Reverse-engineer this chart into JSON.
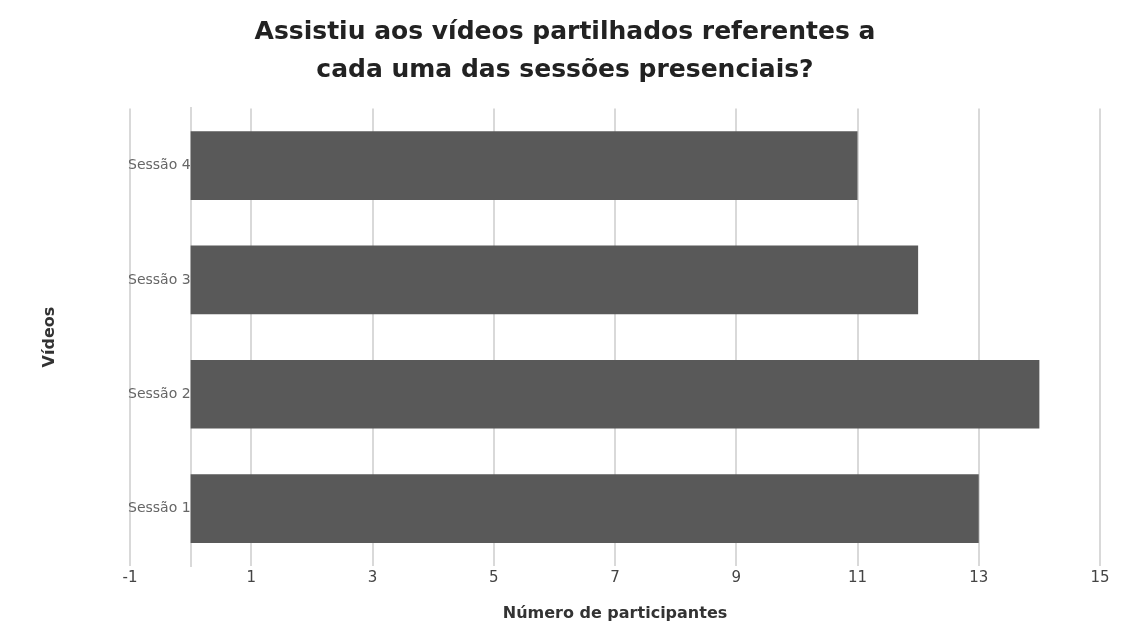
{
  "chart_data": {
    "type": "bar",
    "orientation": "horizontal",
    "title": "Assistiu aos vídeos partilhados referentes a cada uma das sessões presenciais?",
    "xlabel": "Número de participantes",
    "ylabel": "Vídeos",
    "categories": [
      "Sessão 4",
      "Sessão 3",
      "Sessão 2",
      "Sessão 1"
    ],
    "values": [
      11,
      12,
      14,
      13
    ],
    "color": "#595959",
    "xlim": [
      -1,
      15
    ],
    "xticks": [
      -1,
      1,
      3,
      5,
      7,
      9,
      11,
      13,
      15
    ],
    "grid": "x",
    "legend": false
  }
}
